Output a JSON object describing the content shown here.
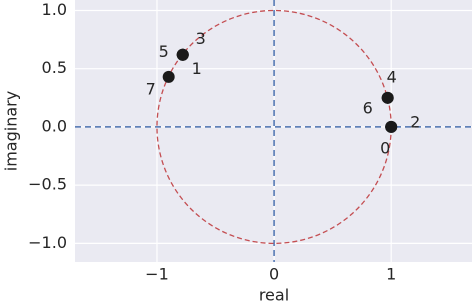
{
  "chart_data": {
    "type": "scatter",
    "x": [
      1.0,
      -0.78,
      1.0,
      -0.78,
      0.97,
      -0.78,
      0.97,
      -0.9
    ],
    "values": [
      0.0,
      0.62,
      0.0,
      0.62,
      0.25,
      0.62,
      0.25,
      0.43
    ],
    "point_labels": [
      "0",
      "1",
      "2",
      "3",
      "4",
      "5",
      "6",
      "7"
    ],
    "color": "#1a1a1a",
    "circle": {
      "radius": 1,
      "color": "#c44e52"
    },
    "axis_line_color": "#4c72b0",
    "x_label": "real",
    "y_label": "imaginary",
    "xlim": [
      -1.7,
      1.69
    ],
    "ylim": [
      -1.16,
      1.09
    ],
    "xticks": [
      {
        "value": -1,
        "label": "−1"
      },
      0,
      1
    ],
    "yticks": [
      {
        "value": -1.0,
        "label": "−1.0"
      },
      {
        "value": -0.5,
        "label": "−0.5"
      },
      {
        "value": 0.0,
        "label": "0.0"
      },
      0.5,
      {
        "value": 1.0,
        "label": "1.0"
      }
    ],
    "grid": true
  }
}
